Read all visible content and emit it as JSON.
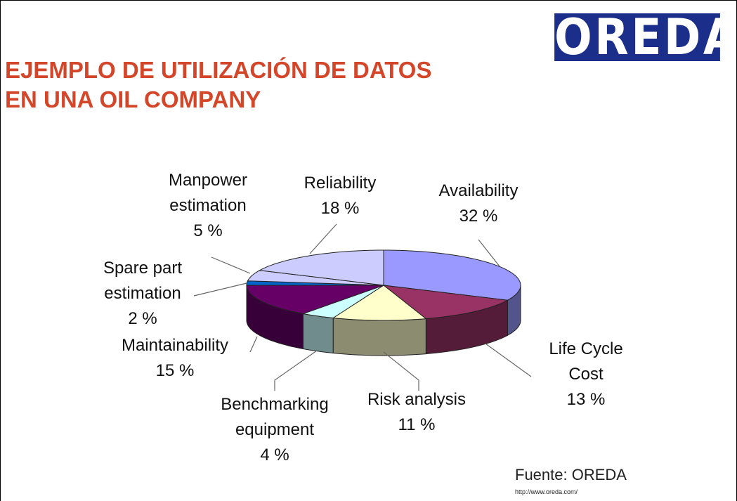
{
  "title": "EJEMPLO DE UTILIZACIÓN DE DATOS EN UNA OIL COMPANY",
  "logo": "OREDA",
  "source": "Fuente: OREDA",
  "url": "http://www.oreda.com/",
  "chart_data": {
    "type": "pie3d",
    "categories": [
      "Availability",
      "Life Cycle Cost",
      "Risk analysis",
      "Benchmarking equipment",
      "Maintainability",
      "Spare part estimation",
      "Manpower estimation",
      "Reliability"
    ],
    "values": [
      32,
      13,
      11,
      4,
      15,
      2,
      5,
      18
    ],
    "value_labels": [
      "32 %",
      "13 %",
      "11 %",
      "4 %",
      "15 %",
      "2 %",
      "5 %",
      "18 %"
    ],
    "colors": [
      "#9999ff",
      "#993366",
      "#ffffcc",
      "#ccffff",
      "#660066",
      "#0066cc",
      "#ccccff",
      "#ccccff"
    ]
  }
}
